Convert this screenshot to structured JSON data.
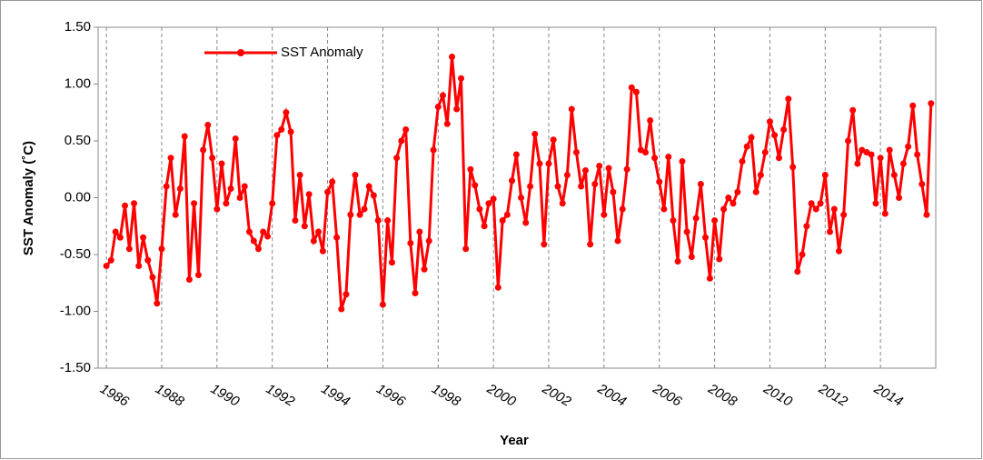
{
  "chart_data": {
    "type": "line",
    "y_label": "SST Anomaly (˚C)",
    "x_label": "Year",
    "xlim": [
      1985.7,
      2016
    ],
    "xticks": [
      1986,
      1988,
      1990,
      1992,
      1994,
      1996,
      1998,
      2000,
      2002,
      2004,
      2006,
      2008,
      2010,
      2012,
      2014
    ],
    "ylim": [
      -1.5,
      1.5
    ],
    "yticks": [
      {
        "value": -1.5,
        "label": "-1.50"
      },
      {
        "value": -1,
        "label": "-1.00"
      },
      {
        "value": -0.5,
        "label": "-0.50"
      },
      {
        "value": 0,
        "label": "0.00"
      },
      {
        "value": 0.5,
        "label": "0.50"
      },
      {
        "value": 1,
        "label": "1.00"
      },
      {
        "value": 1.5,
        "label": "1.50"
      }
    ],
    "grid": true,
    "legend": "upper left",
    "x": [
      1986,
      1986.17,
      1986.33,
      1986.5,
      1986.67,
      1986.83,
      1987,
      1987.17,
      1987.33,
      1987.5,
      1987.67,
      1987.83,
      1988,
      1988.17,
      1988.33,
      1988.5,
      1988.67,
      1988.83,
      1989,
      1989.17,
      1989.33,
      1989.5,
      1989.67,
      1989.83,
      1990,
      1990.17,
      1990.33,
      1990.5,
      1990.67,
      1990.83,
      1991,
      1991.17,
      1991.33,
      1991.5,
      1991.67,
      1991.83,
      1992,
      1992.17,
      1992.33,
      1992.5,
      1992.67,
      1992.83,
      1993,
      1993.17,
      1993.33,
      1993.5,
      1993.67,
      1993.83,
      1994,
      1994.17,
      1994.33,
      1994.5,
      1994.67,
      1994.83,
      1995,
      1995.17,
      1995.33,
      1995.5,
      1995.67,
      1995.83,
      1996,
      1996.17,
      1996.33,
      1996.5,
      1996.67,
      1996.83,
      1997,
      1997.17,
      1997.33,
      1997.5,
      1997.67,
      1997.83,
      1998,
      1998.17,
      1998.33,
      1998.5,
      1998.67,
      1998.83,
      1999,
      1999.17,
      1999.33,
      1999.5,
      1999.67,
      1999.83,
      2000,
      2000.17,
      2000.33,
      2000.5,
      2000.67,
      2000.83,
      2001,
      2001.17,
      2001.33,
      2001.5,
      2001.67,
      2001.83,
      2002,
      2002.17,
      2002.33,
      2002.5,
      2002.67,
      2002.83,
      2003,
      2003.17,
      2003.33,
      2003.5,
      2003.67,
      2003.83,
      2004,
      2004.17,
      2004.33,
      2004.5,
      2004.67,
      2004.83,
      2005,
      2005.17,
      2005.33,
      2005.5,
      2005.67,
      2005.83,
      2006,
      2006.17,
      2006.33,
      2006.5,
      2006.67,
      2006.83,
      2007,
      2007.17,
      2007.33,
      2007.5,
      2007.67,
      2007.83,
      2008,
      2008.17,
      2008.33,
      2008.5,
      2008.67,
      2008.83,
      2009,
      2009.17,
      2009.33,
      2009.5,
      2009.67,
      2009.83,
      2010,
      2010.17,
      2010.33,
      2010.5,
      2010.67,
      2010.83,
      2011,
      2011.17,
      2011.33,
      2011.5,
      2011.67,
      2011.83,
      2012,
      2012.17,
      2012.33,
      2012.5,
      2012.67,
      2012.83,
      2013,
      2013.17,
      2013.33,
      2013.5,
      2013.67,
      2013.83,
      2014,
      2014.17,
      2014.33,
      2014.5,
      2014.67,
      2014.83,
      2015,
      2015.17,
      2015.33,
      2015.5,
      2015.67,
      2015.83
    ],
    "series": [
      {
        "name": "SST Anomaly",
        "color": "#ff0000",
        "values": [
          -0.6,
          -0.55,
          -0.3,
          -0.35,
          -0.07,
          -0.45,
          -0.05,
          -0.6,
          -0.35,
          -0.55,
          -0.7,
          -0.93,
          -0.45,
          0.1,
          0.35,
          -0.15,
          0.08,
          0.54,
          -0.72,
          -0.05,
          -0.68,
          0.42,
          0.64,
          0.35,
          -0.1,
          0.3,
          -0.05,
          0.08,
          0.52,
          0.0,
          0.1,
          -0.3,
          -0.38,
          -0.45,
          -0.3,
          -0.34,
          -0.05,
          0.55,
          0.6,
          0.75,
          0.58,
          -0.2,
          0.2,
          -0.25,
          0.03,
          -0.38,
          -0.3,
          -0.47,
          0.05,
          0.14,
          -0.35,
          -0.98,
          -0.85,
          -0.15,
          0.2,
          -0.15,
          -0.1,
          0.1,
          0.02,
          -0.2,
          -0.94,
          -0.2,
          -0.57,
          0.35,
          0.5,
          0.6,
          -0.4,
          -0.84,
          -0.3,
          -0.63,
          -0.38,
          0.42,
          0.8,
          0.9,
          0.65,
          1.24,
          0.78,
          1.05,
          -0.45,
          0.25,
          0.11,
          -0.1,
          -0.25,
          -0.05,
          -0.01,
          -0.79,
          -0.2,
          -0.15,
          0.15,
          0.38,
          0.0,
          -0.22,
          0.1,
          0.56,
          0.3,
          -0.41,
          0.3,
          0.51,
          0.1,
          -0.05,
          0.2,
          0.78,
          0.4,
          0.1,
          0.24,
          -0.41,
          0.12,
          0.28,
          -0.15,
          0.26,
          0.05,
          -0.38,
          -0.1,
          0.25,
          0.97,
          0.93,
          0.42,
          0.4,
          0.68,
          0.35,
          0.14,
          -0.1,
          0.36,
          -0.2,
          -0.56,
          0.32,
          -0.3,
          -0.52,
          -0.18,
          0.12,
          -0.35,
          -0.71,
          -0.2,
          -0.54,
          -0.1,
          0.0,
          -0.05,
          0.05,
          0.32,
          0.45,
          0.53,
          0.05,
          0.2,
          0.4,
          0.67,
          0.55,
          0.35,
          0.6,
          0.87,
          0.27,
          -0.65,
          -0.5,
          -0.25,
          -0.05,
          -0.1,
          -0.05,
          0.2,
          -0.3,
          -0.1,
          -0.47,
          -0.15,
          0.5,
          0.77,
          0.3,
          0.42,
          0.4,
          0.38,
          -0.05,
          0.35,
          -0.14,
          0.42,
          0.2,
          0.0,
          0.3,
          0.45,
          0.81,
          0.38,
          0.12,
          -0.15,
          0.83
        ]
      }
    ]
  }
}
